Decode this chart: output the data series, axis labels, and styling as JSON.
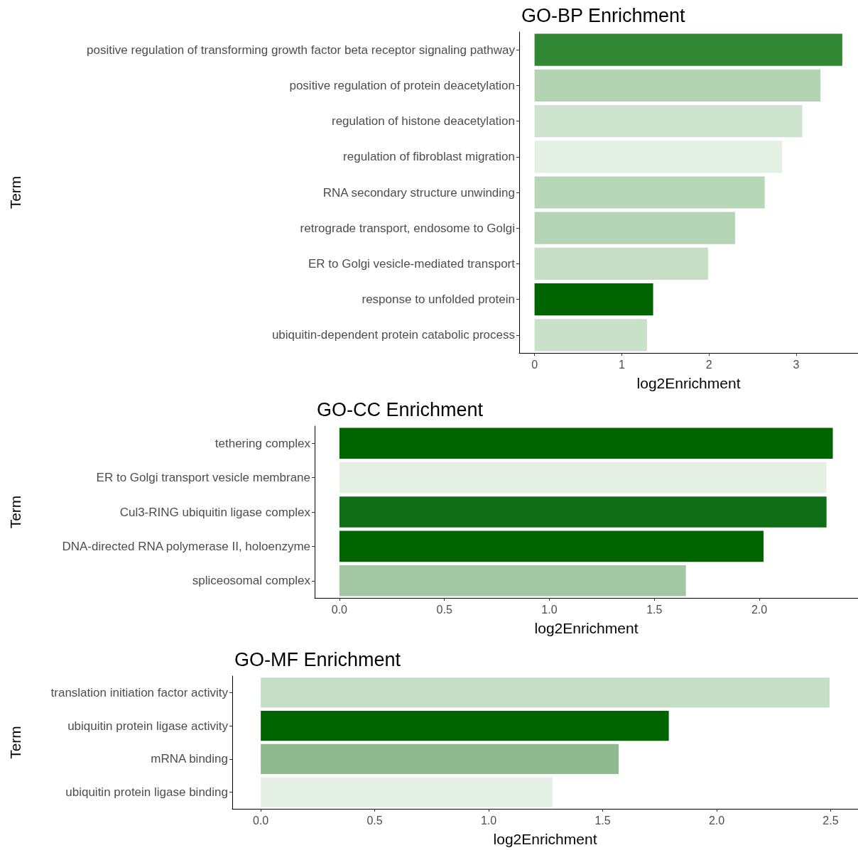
{
  "chart_data": [
    {
      "type": "bar",
      "orientation": "horizontal",
      "title": "GO-BP Enrichment",
      "xlabel": "log2Enrichment",
      "ylabel": "Term",
      "grid": false,
      "categories": [
        "positive regulation of transforming growth factor beta receptor signaling pathway",
        "positive regulation of protein deacetylation",
        "regulation of histone deacetylation",
        "regulation of fibroblast migration",
        "RNA secondary structure unwinding",
        "retrograde transport, endosome to Golgi",
        "ER to Golgi vesicle-mediated transport",
        "response to unfolded protein",
        "ubiquitin-dependent protein catabolic process"
      ],
      "values": [
        3.53,
        3.28,
        3.07,
        2.84,
        2.64,
        2.3,
        1.99,
        1.36,
        1.29
      ],
      "colors": [
        "#318734",
        "#b3d3b3",
        "#cde3cd",
        "#e5f0e5",
        "#b8d6b8",
        "#b5d3b5",
        "#c5dec5",
        "#006400",
        "#c9e0c9"
      ],
      "xlim": [
        -0.176,
        3.71
      ],
      "xticks": [
        0,
        1,
        2,
        3
      ]
    },
    {
      "type": "bar",
      "orientation": "horizontal",
      "title": "GO-CC Enrichment",
      "xlabel": "log2Enrichment",
      "ylabel": "Term",
      "grid": false,
      "categories": [
        "tethering complex",
        "ER to Golgi transport vesicle membrane",
        "Cul3-RING ubiquitin ligase complex",
        "DNA-directed RNA polymerase II, holoenzyme",
        "spliceosomal complex"
      ],
      "values": [
        2.35,
        2.32,
        2.32,
        2.02,
        1.65
      ],
      "colors": [
        "#006400",
        "#e5f0e5",
        "#0f6e15",
        "#006400",
        "#a3c7a3"
      ],
      "xlim": [
        -0.118,
        2.47
      ],
      "xticks": [
        {
          "value": 0,
          "label": "0.0"
        },
        0.5,
        {
          "value": 1,
          "label": "1.0"
        },
        1.5,
        {
          "value": 2,
          "label": "2.0"
        }
      ]
    },
    {
      "type": "bar",
      "orientation": "horizontal",
      "title": "GO-MF Enrichment",
      "xlabel": "log2Enrichment",
      "ylabel": "Term",
      "grid": false,
      "categories": [
        "translation initiation factor activity",
        "ubiquitin protein ligase activity",
        "mRNA binding",
        "ubiquitin protein ligase binding"
      ],
      "values": [
        2.495,
        1.79,
        1.57,
        1.28
      ],
      "colors": [
        "#c6ddc6",
        "#006400",
        "#8fba8f",
        "#e5f0e5"
      ],
      "xlim": [
        -0.125,
        2.62
      ],
      "xticks": [
        {
          "value": 0,
          "label": "0.0"
        },
        0.5,
        {
          "value": 1,
          "label": "1.0"
        },
        1.5,
        {
          "value": 2,
          "label": "2.0"
        },
        2.5
      ]
    }
  ]
}
